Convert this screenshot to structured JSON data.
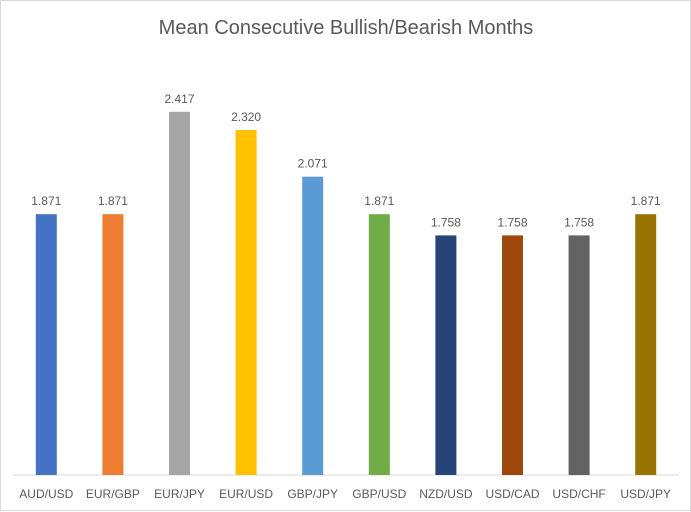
{
  "chart_data": {
    "type": "bar",
    "title": "Mean Consecutive Bullish/Bearish Months",
    "xlabel": "",
    "ylabel": "",
    "categories": [
      "AUD/USD",
      "EUR/GBP",
      "EUR/JPY",
      "EUR/USD",
      "GBP/JPY",
      "GBP/USD",
      "NZD/USD",
      "USD/CAD",
      "USD/CHF",
      "USD/JPY"
    ],
    "values": [
      1.871,
      1.871,
      2.417,
      2.32,
      2.071,
      1.871,
      1.758,
      1.758,
      1.758,
      1.871
    ],
    "value_labels": [
      "1.871",
      "1.871",
      "2.417",
      "2.320",
      "2.071",
      "1.871",
      "1.758",
      "1.758",
      "1.758",
      "1.871"
    ],
    "bar_colors": [
      "#4472C4",
      "#ED7D31",
      "#A5A5A5",
      "#FFC000",
      "#5B9BD5",
      "#70AD47",
      "#264478",
      "#9E480E",
      "#636363",
      "#997300"
    ],
    "ylim": [
      0,
      3
    ],
    "grid": false,
    "legend": "none",
    "axis_line_color": "#d9d9d9"
  }
}
